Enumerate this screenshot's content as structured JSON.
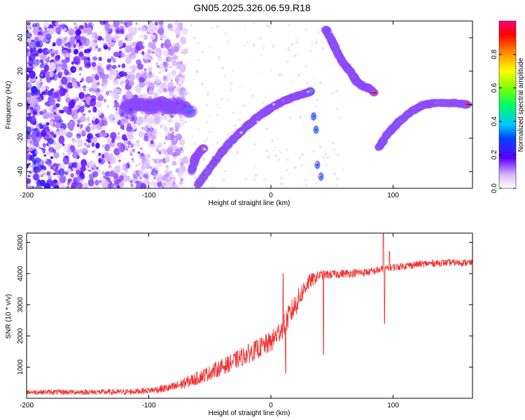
{
  "title": "GN05.2025.326.06.59.R18",
  "chart_data": [
    {
      "type": "heatmap",
      "name": "spectrogram",
      "xlabel": "Height of straight line (km)",
      "ylabel": "Frequency (Hz)",
      "xlim": [
        -200,
        165
      ],
      "ylim": [
        -50,
        50
      ],
      "xticks": [
        {
          "value": -200,
          "label": "-200"
        },
        {
          "value": -100,
          "label": "-100"
        },
        {
          "value": 0,
          "label": "0"
        },
        {
          "value": 100,
          "label": "100"
        }
      ],
      "yticks": [
        {
          "value": 40,
          "label": "40"
        },
        {
          "value": 20,
          "label": "20"
        },
        {
          "value": 0,
          "label": "0"
        },
        {
          "value": -20,
          "label": "-20"
        },
        {
          "value": -40,
          "label": "-40"
        }
      ],
      "colorbar": {
        "label": "Normalized spectral amplitude",
        "range": [
          0,
          1
        ],
        "ticks": [
          {
            "value": 0.0,
            "label": "0.0"
          },
          {
            "value": 0.2,
            "label": "0.2"
          },
          {
            "value": 0.4,
            "label": "0.4"
          },
          {
            "value": 0.6,
            "label": "0.6"
          },
          {
            "value": 0.8,
            "label": "0.8"
          }
        ]
      },
      "traces": [
        {
          "name": "main-descending-arc",
          "points": [
            [
              -60,
              -48
            ],
            [
              -50,
              -38
            ],
            [
              -40,
              -28
            ],
            [
              -30,
              -20
            ],
            [
              -20,
              -13
            ],
            [
              -10,
              -7
            ],
            [
              0,
              -2
            ],
            [
              10,
              2
            ],
            [
              20,
              5
            ],
            [
              30,
              7
            ],
            [
              33,
              8
            ]
          ]
        },
        {
          "name": "hook-segment",
          "points": [
            [
              -65,
              -40
            ],
            [
              -62,
              -32
            ],
            [
              -58,
              -28
            ],
            [
              -55,
              -26
            ]
          ]
        },
        {
          "name": "high-descending-arc",
          "points": [
            [
              45,
              45
            ],
            [
              50,
              38
            ],
            [
              55,
              30
            ],
            [
              60,
              24
            ],
            [
              65,
              20
            ],
            [
              70,
              14
            ],
            [
              75,
              11
            ],
            [
              80,
              10
            ],
            [
              85,
              7
            ]
          ]
        },
        {
          "name": "right-rising-arc",
          "points": [
            [
              88,
              -26
            ],
            [
              95,
              -18
            ],
            [
              105,
              -10
            ],
            [
              115,
              -4
            ],
            [
              125,
              0
            ],
            [
              135,
              1
            ],
            [
              150,
              1
            ],
            [
              162,
              0
            ]
          ]
        },
        {
          "name": "short-fragments",
          "points": [
            [
              35,
              -7
            ],
            [
              37,
              -15
            ],
            [
              38,
              -36
            ],
            [
              41,
              -43
            ]
          ]
        },
        {
          "name": "noise-band",
          "points": [
            [
              -120,
              -2
            ],
            [
              -110,
              0
            ],
            [
              -100,
              -1
            ],
            [
              -90,
              0
            ],
            [
              -80,
              -1
            ],
            [
              -65,
              -3
            ]
          ]
        }
      ]
    },
    {
      "type": "line",
      "name": "snr",
      "xlabel": "Height of straight line (km)",
      "ylabel": "SNR (10 * v/v)",
      "xlim": [
        -200,
        165
      ],
      "ylim": [
        0,
        5300
      ],
      "xticks": [
        {
          "value": -200,
          "label": "-200"
        },
        {
          "value": -100,
          "label": "-100"
        },
        {
          "value": 0,
          "label": "0"
        },
        {
          "value": 100,
          "label": "100"
        }
      ],
      "yticks": [
        {
          "value": 1000,
          "label": "1000"
        },
        {
          "value": 2000,
          "label": "2000"
        },
        {
          "value": 3000,
          "label": "3000"
        },
        {
          "value": 4000,
          "label": "4000"
        },
        {
          "value": 5000,
          "label": "5000"
        }
      ],
      "color": "#ee3030",
      "envelope": [
        [
          -200,
          200
        ],
        [
          -120,
          200
        ],
        [
          -100,
          250
        ],
        [
          -80,
          350
        ],
        [
          -60,
          650
        ],
        [
          -40,
          1000
        ],
        [
          -20,
          1400
        ],
        [
          0,
          1800
        ],
        [
          10,
          2300
        ],
        [
          20,
          3000
        ],
        [
          30,
          3700
        ],
        [
          40,
          3950
        ],
        [
          60,
          4000
        ],
        [
          80,
          4050
        ],
        [
          100,
          4200
        ],
        [
          120,
          4300
        ],
        [
          140,
          4350
        ],
        [
          165,
          4350
        ]
      ],
      "noise_envelope": [
        [
          -200,
          80
        ],
        [
          -100,
          100
        ],
        [
          -50,
          250
        ],
        [
          0,
          350
        ],
        [
          20,
          400
        ],
        [
          40,
          150
        ],
        [
          100,
          120
        ],
        [
          165,
          110
        ]
      ],
      "spikes": [
        [
          10,
          4000
        ],
        [
          12,
          800
        ],
        [
          43,
          1400
        ],
        [
          92,
          5300
        ],
        [
          93,
          2400
        ],
        [
          97,
          4700
        ]
      ]
    }
  ]
}
